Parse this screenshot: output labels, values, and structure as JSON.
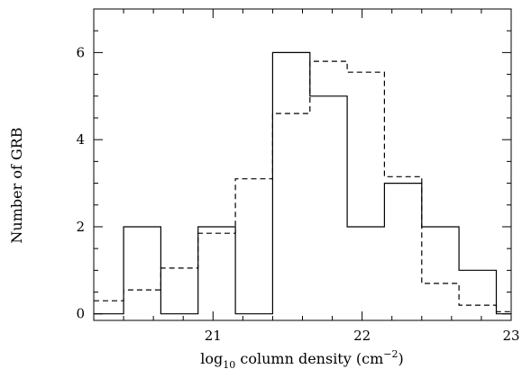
{
  "chart_data": {
    "type": "histogram-step",
    "title": "",
    "xlabel_main": "log",
    "xlabel_sub": "10",
    "xlabel_rest": " column density (cm",
    "xlabel_sup": "−2",
    "xlabel_close": ")",
    "ylabel": "Number of GRB",
    "xlim": [
      20.2,
      23.0
    ],
    "ylim": [
      -0.15,
      7.0
    ],
    "xticks": [
      21,
      22,
      23
    ],
    "xtick_labels": [
      "21",
      "22",
      "23"
    ],
    "yticks": [
      0,
      2,
      4,
      6
    ],
    "ytick_labels": [
      "0",
      "2",
      "4",
      "6"
    ],
    "bin_edges": [
      20.2,
      20.4,
      20.65,
      20.9,
      21.15,
      21.4,
      21.65,
      21.9,
      22.15,
      22.4,
      22.65,
      22.9,
      23.0
    ],
    "series": [
      {
        "style": "solid",
        "values": [
          0,
          2,
          0,
          2,
          0,
          6,
          5,
          2,
          3,
          2,
          1,
          0
        ]
      },
      {
        "style": "dashed",
        "values": [
          0.3,
          0.55,
          1.05,
          1.85,
          3.1,
          4.6,
          5.8,
          5.55,
          3.15,
          0.7,
          0.2,
          0.05
        ]
      }
    ]
  }
}
